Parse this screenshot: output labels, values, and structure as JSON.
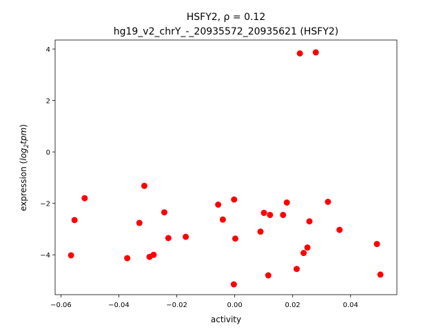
{
  "chart_data": {
    "type": "scatter",
    "title_line1": "HSFY2, ρ = 0.12",
    "title_line2": "hg19_v2_chrY_-_20935572_20935621 (HSFY2)",
    "xlabel": "activity",
    "ylabel_prefix": "expression (",
    "ylabel_math": "log",
    "ylabel_sub": "2",
    "ylabel_math2": "tpm",
    "ylabel_suffix": ")",
    "xlim": [
      -0.062,
      0.056
    ],
    "ylim": [
      -5.55,
      4.35
    ],
    "xticks": [
      -0.06,
      -0.04,
      -0.02,
      0.0,
      0.02,
      0.04
    ],
    "xtick_labels": [
      "−0.06",
      "−0.04",
      "−0.02",
      "0.00",
      "0.02",
      "0.04"
    ],
    "yticks": [
      -4,
      -2,
      0,
      2,
      4
    ],
    "ytick_labels": [
      "−4",
      "−2",
      "0",
      "2",
      "4"
    ],
    "grid": false,
    "marker_color": "#ff0000",
    "points": [
      {
        "x": -0.0565,
        "y": -4.02
      },
      {
        "x": -0.0553,
        "y": -2.65
      },
      {
        "x": -0.0518,
        "y": -1.8
      },
      {
        "x": -0.0371,
        "y": -4.13
      },
      {
        "x": -0.0329,
        "y": -2.76
      },
      {
        "x": -0.0312,
        "y": -1.32
      },
      {
        "x": -0.0294,
        "y": -4.08
      },
      {
        "x": -0.028,
        "y": -4.0
      },
      {
        "x": -0.0243,
        "y": -2.35
      },
      {
        "x": -0.0229,
        "y": -3.35
      },
      {
        "x": -0.0169,
        "y": -3.3
      },
      {
        "x": -0.0057,
        "y": -2.05
      },
      {
        "x": -0.0041,
        "y": -2.63
      },
      {
        "x": -0.0003,
        "y": -5.15
      },
      {
        "x": -0.0002,
        "y": -1.85
      },
      {
        "x": 0.0002,
        "y": -3.37
      },
      {
        "x": 0.0089,
        "y": -3.1
      },
      {
        "x": 0.0101,
        "y": -2.37
      },
      {
        "x": 0.0116,
        "y": -4.8
      },
      {
        "x": 0.0122,
        "y": -2.45
      },
      {
        "x": 0.0167,
        "y": -2.45
      },
      {
        "x": 0.018,
        "y": -1.97
      },
      {
        "x": 0.0214,
        "y": -4.55
      },
      {
        "x": 0.0225,
        "y": 3.83
      },
      {
        "x": 0.0238,
        "y": -3.93
      },
      {
        "x": 0.0251,
        "y": -3.72
      },
      {
        "x": 0.0258,
        "y": -2.7
      },
      {
        "x": 0.028,
        "y": 3.87
      },
      {
        "x": 0.0322,
        "y": -1.94
      },
      {
        "x": 0.0362,
        "y": -3.03
      },
      {
        "x": 0.0491,
        "y": -3.58
      },
      {
        "x": 0.0503,
        "y": -4.77
      }
    ]
  }
}
